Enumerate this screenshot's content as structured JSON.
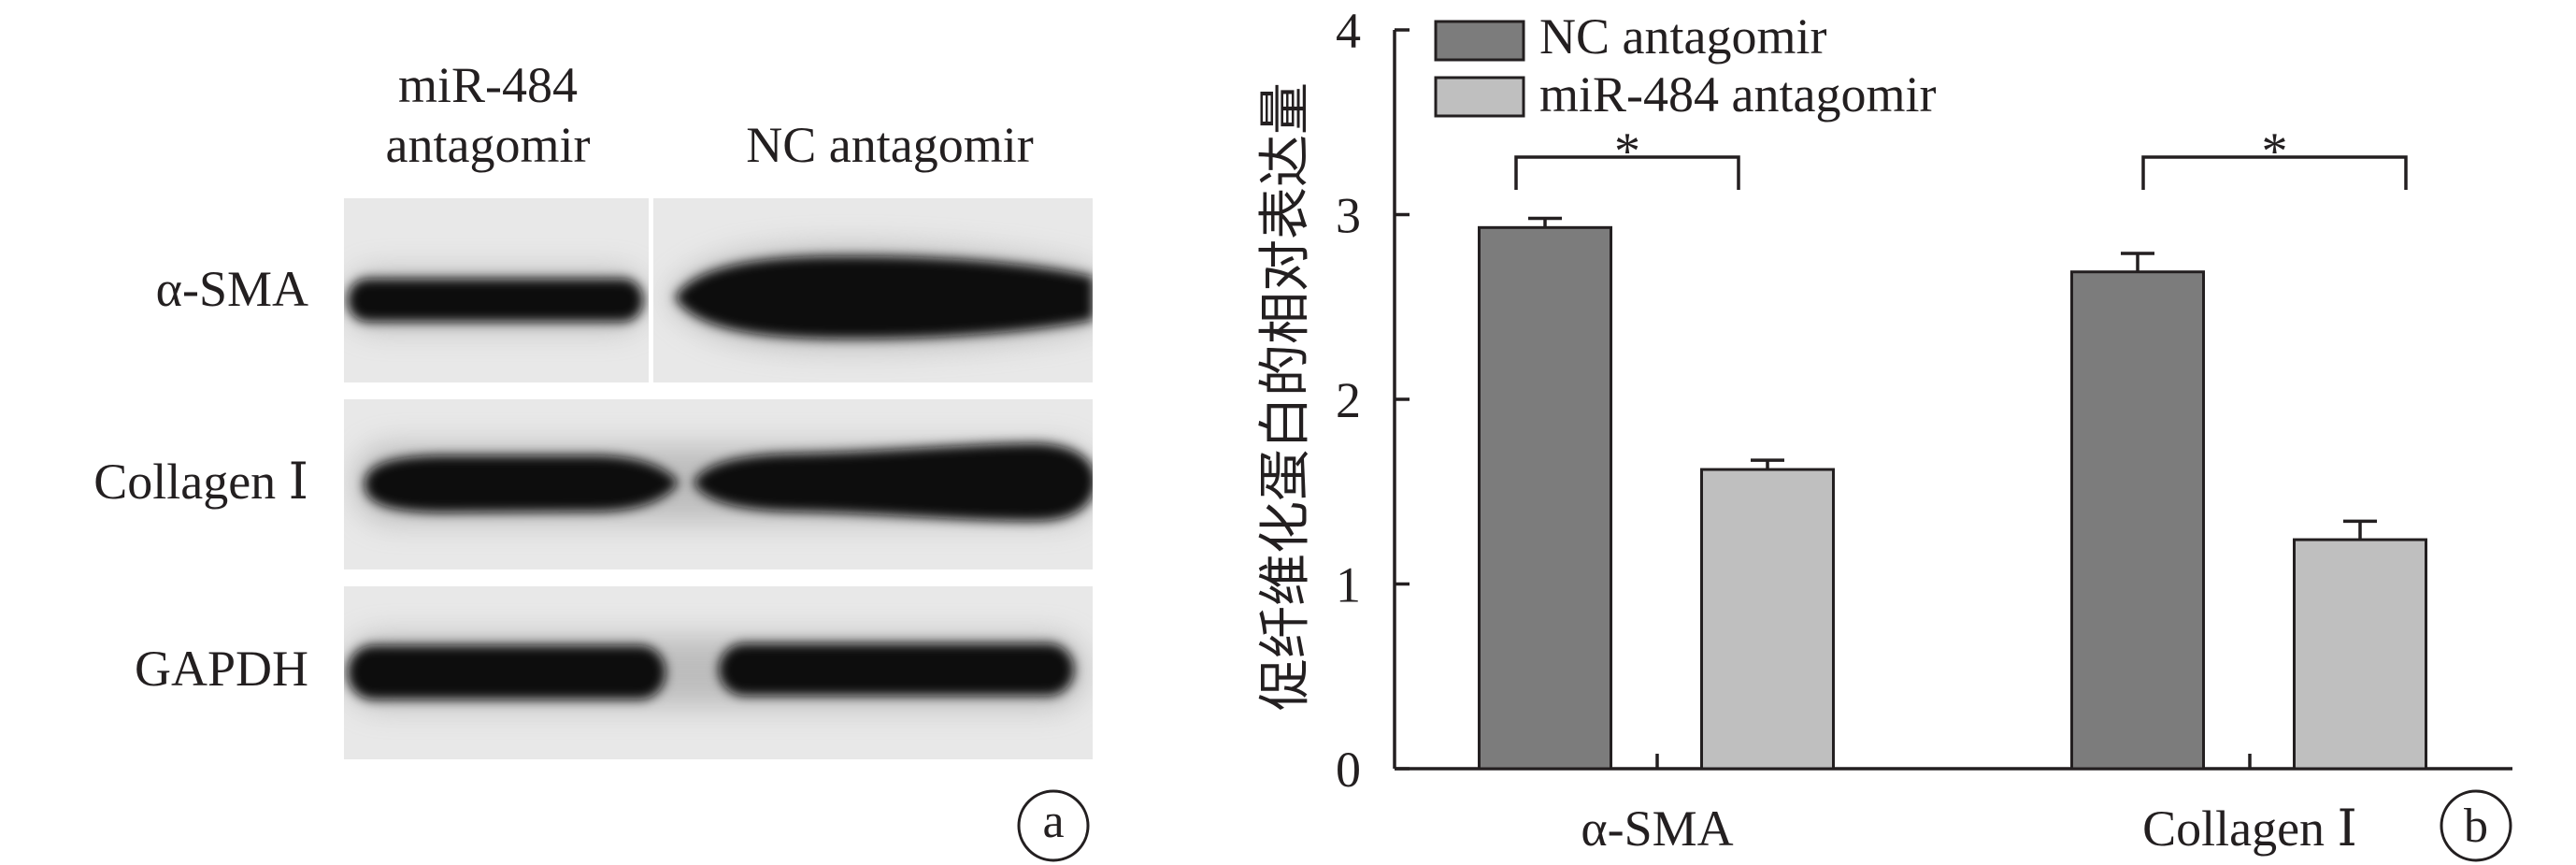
{
  "panel_a": {
    "label": "a",
    "column_labels": {
      "left": [
        "miR-484",
        "antagomir"
      ],
      "right": "NC antagomir"
    },
    "row_labels": [
      "α-SMA",
      "Collagen Ⅰ",
      "GAPDH"
    ]
  },
  "panel_b": {
    "label": "b"
  },
  "chart_data": {
    "type": "bar",
    "categories": [
      "α-SMA",
      "Collagen Ⅰ"
    ],
    "series": [
      {
        "name": "NC antagomir",
        "values": [
          2.93,
          2.69
        ],
        "errors": [
          0.05,
          0.1
        ],
        "color": "#7c7c7c"
      },
      {
        "name": "miR-484 antagomir",
        "values": [
          1.62,
          1.24
        ],
        "errors": [
          0.05,
          0.1
        ],
        "color": "#bfbfbf"
      }
    ],
    "ylabel": "促纤维化蛋白的相对表达量",
    "ylim": [
      0,
      4
    ],
    "yticks": [
      0,
      1,
      2,
      3,
      4
    ],
    "grid": false,
    "legend": "top-left",
    "significance": [
      "*",
      "*"
    ]
  }
}
